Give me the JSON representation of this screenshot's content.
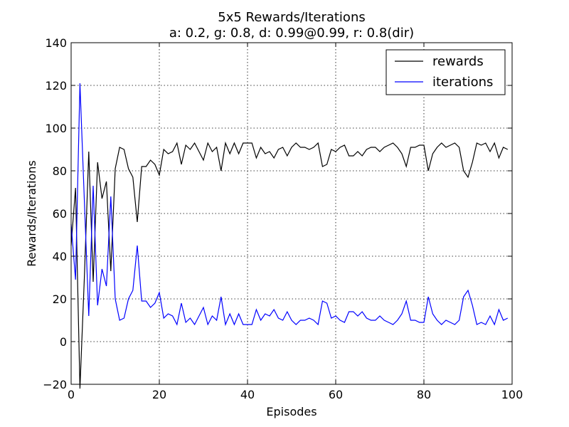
{
  "chart_data": {
    "type": "line",
    "title": "5x5 Rewards/Iterations",
    "subtitle": "a: 0.2, g: 0.8, d: 0.99@0.99, r: 0.8(dir)",
    "xlabel": "Episodes",
    "ylabel": "Rewards/Iterations",
    "xlim": [
      0,
      100
    ],
    "ylim": [
      -20,
      140
    ],
    "xticks": [
      0,
      20,
      40,
      60,
      80,
      100
    ],
    "yticks": [
      -20,
      0,
      20,
      40,
      60,
      80,
      100,
      120,
      140
    ],
    "grid": true,
    "legend_position": "top-right",
    "series": [
      {
        "name": "rewards",
        "color": "#000000",
        "values": [
          45,
          72,
          -22,
          30,
          89,
          28,
          84,
          67,
          75,
          33,
          81,
          91,
          90,
          81,
          77,
          56,
          82,
          82,
          85,
          83,
          78,
          90,
          88,
          89,
          93,
          83,
          92,
          90,
          93,
          89,
          85,
          93,
          89,
          91,
          80,
          93,
          88,
          93,
          88,
          93,
          93,
          93,
          86,
          91,
          88,
          89,
          86,
          90,
          91,
          87,
          91,
          93,
          91,
          91,
          90,
          91,
          93,
          82,
          83,
          90,
          89,
          91,
          92,
          87,
          87,
          89,
          87,
          90,
          91,
          91,
          89,
          91,
          92,
          93,
          91,
          88,
          82,
          91,
          91,
          92,
          92,
          80,
          88,
          91,
          93,
          91,
          92,
          93,
          91,
          80,
          77,
          84,
          93,
          92,
          93,
          89,
          93,
          86,
          91,
          90
        ]
      },
      {
        "name": "iterations",
        "color": "#0000ff",
        "values": [
          55,
          29,
          121,
          66,
          12,
          73,
          17,
          34,
          26,
          68,
          20,
          10,
          11,
          20,
          24,
          45,
          19,
          19,
          16,
          18,
          23,
          11,
          13,
          12,
          8,
          18,
          9,
          11,
          8,
          12,
          16,
          8,
          12,
          10,
          21,
          8,
          13,
          8,
          13,
          8,
          8,
          8,
          15,
          10,
          13,
          12,
          15,
          11,
          10,
          14,
          10,
          8,
          10,
          10,
          11,
          10,
          8,
          19,
          18,
          11,
          12,
          10,
          9,
          14,
          14,
          12,
          14,
          11,
          10,
          10,
          12,
          10,
          9,
          8,
          10,
          13,
          19,
          10,
          10,
          9,
          9,
          21,
          13,
          10,
          8,
          10,
          9,
          8,
          10,
          21,
          24,
          17,
          8,
          9,
          8,
          12,
          8,
          15,
          10,
          11
        ]
      }
    ]
  }
}
